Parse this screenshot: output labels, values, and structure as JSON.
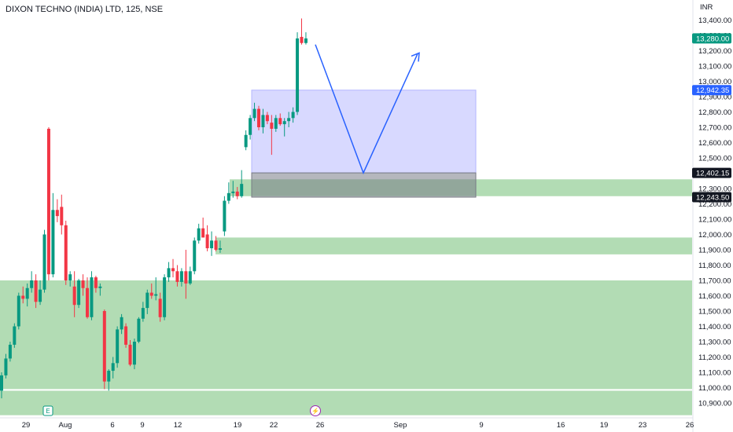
{
  "header": {
    "title": "DIXON TECHNO (INDIA) LTD, 125, NSE"
  },
  "axis": {
    "currency": "INR"
  },
  "price_tags": [
    {
      "label": "13,280.00",
      "value": 13280,
      "color": "#089981"
    },
    {
      "label": "12,942.35",
      "value": 12942.35,
      "color": "#2962ff"
    },
    {
      "label": "12,402.15",
      "value": 12402.15,
      "color": "#131722"
    },
    {
      "label": "12,243.50",
      "value": 12243.5,
      "color": "#131722"
    }
  ],
  "events": [
    {
      "symbol": "E",
      "name": "earnings-event-icon",
      "color": "#089981",
      "date": "Aug 1"
    },
    {
      "symbol": "⚡",
      "name": "dividend-split-event-icon",
      "color": "#9c27b0",
      "date": "Aug 24"
    }
  ],
  "colors": {
    "up": "#089981",
    "down": "#f23645",
    "zone": "#a5d6a7",
    "projection_box": "#c7c9ff",
    "projection_line": "#2962ff",
    "gap_box": "#787b86"
  },
  "chart_data": {
    "type": "candlestick",
    "title": "DIXON TECHNO (INDIA) LTD, 125, NSE",
    "interval": "125",
    "exchange": "NSE",
    "ylim": [
      10820,
      13480
    ],
    "y_ticks": [
      10900,
      11000,
      11100,
      11200,
      11300,
      11400,
      11500,
      11600,
      11700,
      11800,
      11900,
      12000,
      12100,
      12200,
      12300,
      12400,
      12500,
      12600,
      12700,
      12800,
      12900,
      13000,
      13100,
      13200,
      13300,
      13400
    ],
    "y_tick_labels": [
      "10,900.00",
      "11,000.00",
      "11,100.00",
      "11,200.00",
      "11,300.00",
      "11,400.00",
      "11,500.00",
      "11,600.00",
      "11,700.00",
      "11,800.00",
      "11,900.00",
      "12,000.00",
      "12,100.00",
      "12,200.00",
      "12,300.00",
      "12,400.00",
      "12,500.00",
      "12,600.00",
      "12,700.00",
      "12,800.00",
      "12,900.00",
      "13,000.00",
      "13,100.00",
      "13,200.00",
      "13,300.00",
      "13,400.00"
    ],
    "x_ticks": [
      {
        "label": "29",
        "date": "Jul 29"
      },
      {
        "label": "Aug",
        "date": "Aug 1"
      },
      {
        "label": "6",
        "date": "Aug 6"
      },
      {
        "label": "9",
        "date": "Aug 9"
      },
      {
        "label": "12",
        "date": "Aug 12"
      },
      {
        "label": "19",
        "date": "Aug 19"
      },
      {
        "label": "22",
        "date": "Aug 22"
      },
      {
        "label": "26",
        "date": "Aug 26"
      },
      {
        "label": "Sep",
        "date": "Sep 2"
      },
      {
        "label": "9",
        "date": "Sep 9"
      },
      {
        "label": "16",
        "date": "Sep 16"
      },
      {
        "label": "19",
        "date": "Sep 19"
      },
      {
        "label": "23",
        "date": "Sep 23"
      },
      {
        "label": "26",
        "date": "Sep 26"
      }
    ],
    "candles": [
      {
        "o": 10980,
        "h": 11100,
        "l": 10930,
        "c": 11080
      },
      {
        "o": 11080,
        "h": 11220,
        "l": 11060,
        "c": 11190
      },
      {
        "o": 11190,
        "h": 11300,
        "l": 11170,
        "c": 11280
      },
      {
        "o": 11280,
        "h": 11420,
        "l": 11260,
        "c": 11400
      },
      {
        "o": 11400,
        "h": 11620,
        "l": 11380,
        "c": 11600
      },
      {
        "o": 11600,
        "h": 11660,
        "l": 11550,
        "c": 11580
      },
      {
        "o": 11580,
        "h": 11680,
        "l": 11530,
        "c": 11650
      },
      {
        "o": 11650,
        "h": 11760,
        "l": 11620,
        "c": 11700
      },
      {
        "o": 11700,
        "h": 11740,
        "l": 11520,
        "c": 11560
      },
      {
        "o": 11560,
        "h": 11700,
        "l": 11540,
        "c": 11640
      },
      {
        "o": 11640,
        "h": 12030,
        "l": 11620,
        "c": 12000
      },
      {
        "o": 12690,
        "h": 12700,
        "l": 11700,
        "c": 11740
      },
      {
        "o": 11740,
        "h": 12270,
        "l": 11720,
        "c": 12160
      },
      {
        "o": 12160,
        "h": 12230,
        "l": 12080,
        "c": 12120
      },
      {
        "o": 12180,
        "h": 12260,
        "l": 12000,
        "c": 12060
      },
      {
        "o": 12060,
        "h": 12090,
        "l": 11670,
        "c": 11700
      },
      {
        "o": 11700,
        "h": 11760,
        "l": 11660,
        "c": 11740
      },
      {
        "o": 11660,
        "h": 11760,
        "l": 11460,
        "c": 11540
      },
      {
        "o": 11540,
        "h": 11710,
        "l": 11520,
        "c": 11700
      },
      {
        "o": 11700,
        "h": 11740,
        "l": 11600,
        "c": 11650
      },
      {
        "o": 11650,
        "h": 11720,
        "l": 11450,
        "c": 11460
      },
      {
        "o": 11460,
        "h": 11760,
        "l": 11440,
        "c": 11720
      },
      {
        "o": 11720,
        "h": 11730,
        "l": 11620,
        "c": 11650
      },
      {
        "o": 11650,
        "h": 11680,
        "l": 11600,
        "c": 11660
      },
      {
        "o": 11500,
        "h": 11510,
        "l": 10990,
        "c": 11040
      },
      {
        "o": 11040,
        "h": 11120,
        "l": 10980,
        "c": 11110
      },
      {
        "o": 11110,
        "h": 11200,
        "l": 11060,
        "c": 11160
      },
      {
        "o": 11160,
        "h": 11400,
        "l": 11130,
        "c": 11380
      },
      {
        "o": 11380,
        "h": 11480,
        "l": 11350,
        "c": 11460
      },
      {
        "o": 11400,
        "h": 11420,
        "l": 11260,
        "c": 11280
      },
      {
        "o": 11280,
        "h": 11310,
        "l": 11140,
        "c": 11150
      },
      {
        "o": 11150,
        "h": 11320,
        "l": 11120,
        "c": 11300
      },
      {
        "o": 11300,
        "h": 11460,
        "l": 11290,
        "c": 11450
      },
      {
        "o": 11450,
        "h": 11560,
        "l": 11430,
        "c": 11520
      },
      {
        "o": 11520,
        "h": 11640,
        "l": 11480,
        "c": 11620
      },
      {
        "o": 11620,
        "h": 11680,
        "l": 11580,
        "c": 11600
      },
      {
        "o": 11600,
        "h": 11720,
        "l": 11570,
        "c": 11610
      },
      {
        "o": 11580,
        "h": 11620,
        "l": 11430,
        "c": 11460
      },
      {
        "o": 11460,
        "h": 11740,
        "l": 11440,
        "c": 11720
      },
      {
        "o": 11720,
        "h": 11820,
        "l": 11690,
        "c": 11780
      },
      {
        "o": 11780,
        "h": 11840,
        "l": 11720,
        "c": 11760
      },
      {
        "o": 11760,
        "h": 11800,
        "l": 11660,
        "c": 11690
      },
      {
        "o": 11690,
        "h": 11780,
        "l": 11660,
        "c": 11760
      },
      {
        "o": 11760,
        "h": 11900,
        "l": 11580,
        "c": 11680
      },
      {
        "o": 11680,
        "h": 11790,
        "l": 11670,
        "c": 11760
      },
      {
        "o": 11760,
        "h": 11980,
        "l": 11740,
        "c": 11960
      },
      {
        "o": 11960,
        "h": 12070,
        "l": 11940,
        "c": 12040
      },
      {
        "o": 12040,
        "h": 12110,
        "l": 11980,
        "c": 11980
      },
      {
        "o": 12000,
        "h": 12060,
        "l": 11890,
        "c": 11910
      },
      {
        "o": 11910,
        "h": 12020,
        "l": 11860,
        "c": 11960
      },
      {
        "o": 11960,
        "h": 11990,
        "l": 11890,
        "c": 11900
      },
      {
        "o": 11900,
        "h": 11960,
        "l": 11880,
        "c": 11910
      },
      {
        "o": 12020,
        "h": 12250,
        "l": 11990,
        "c": 12220
      },
      {
        "o": 12220,
        "h": 12340,
        "l": 12200,
        "c": 12270
      },
      {
        "o": 12270,
        "h": 12350,
        "l": 12240,
        "c": 12280
      },
      {
        "o": 12280,
        "h": 12310,
        "l": 12230,
        "c": 12250
      },
      {
        "o": 12250,
        "h": 12420,
        "l": 12240,
        "c": 12330
      },
      {
        "o": 12570,
        "h": 12680,
        "l": 12550,
        "c": 12650
      },
      {
        "o": 12650,
        "h": 12780,
        "l": 12620,
        "c": 12760
      },
      {
        "o": 12760,
        "h": 12860,
        "l": 12740,
        "c": 12820
      },
      {
        "o": 12820,
        "h": 12840,
        "l": 12680,
        "c": 12700
      },
      {
        "o": 12700,
        "h": 12820,
        "l": 12660,
        "c": 12780
      },
      {
        "o": 12780,
        "h": 12800,
        "l": 12720,
        "c": 12740
      },
      {
        "o": 12730,
        "h": 12780,
        "l": 12520,
        "c": 12690
      },
      {
        "o": 12690,
        "h": 12780,
        "l": 12670,
        "c": 12760
      },
      {
        "o": 12760,
        "h": 12790,
        "l": 12710,
        "c": 12720
      },
      {
        "o": 12720,
        "h": 12760,
        "l": 12640,
        "c": 12740
      },
      {
        "o": 12740,
        "h": 12800,
        "l": 12700,
        "c": 12760
      },
      {
        "o": 12760,
        "h": 12830,
        "l": 12730,
        "c": 12800
      },
      {
        "o": 12800,
        "h": 13320,
        "l": 12780,
        "c": 13280
      },
      {
        "o": 13290,
        "h": 13410,
        "l": 13240,
        "c": 13250
      },
      {
        "o": 13250,
        "h": 13320,
        "l": 13240,
        "c": 13280
      }
    ],
    "zones": [
      {
        "name": "support-zone-upper",
        "from": 12250,
        "to": 12360
      },
      {
        "name": "support-zone-middle",
        "from": 11870,
        "to": 11980
      },
      {
        "name": "support-zone-wide",
        "from": 10990,
        "to": 11700
      },
      {
        "name": "support-zone-bottom",
        "from": 10820,
        "to": 10980
      }
    ],
    "projection_box": {
      "top": 12942.35,
      "bottom": 12402.15,
      "from_date": "Aug 20",
      "to_date": "Sep 6"
    },
    "gap_box": {
      "top": 12402.15,
      "bottom": 12243.5,
      "from_date": "Aug 20",
      "to_date": "Sep 6"
    },
    "projection_path": [
      {
        "date": "Aug 26",
        "price": 13240
      },
      {
        "date": "Aug 30",
        "price": 12402
      },
      {
        "date": "Sep 4",
        "price": 13180
      }
    ]
  }
}
